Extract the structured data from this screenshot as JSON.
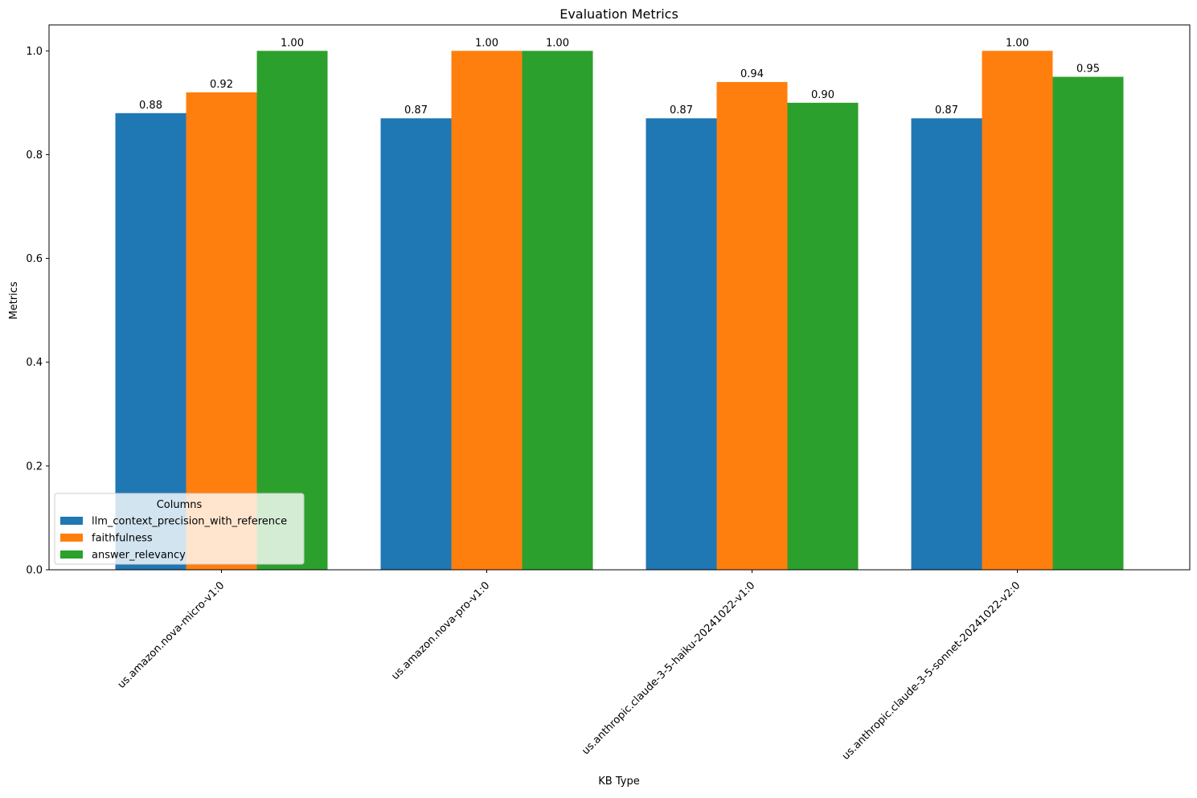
{
  "chart_data": {
    "type": "bar",
    "title": "Evaluation Metrics",
    "xlabel": "KB Type",
    "ylabel": "Metrics",
    "ylim": [
      0,
      1.05
    ],
    "yticks": [
      0.0,
      0.2,
      0.4,
      0.6,
      0.8,
      1.0
    ],
    "ytick_labels": [
      "0.0",
      "0.2",
      "0.4",
      "0.6",
      "0.8",
      "1.0"
    ],
    "grid": false,
    "categories": [
      "us.amazon.nova-micro-v1:0",
      "us.amazon.nova-pro-v1:0",
      "us.anthropic.claude-3-5-haiku-20241022-v1:0",
      "us.anthropic.claude-3-5-sonnet-20241022-v2:0"
    ],
    "series": [
      {
        "name": "llm_context_precision_with_reference",
        "color": "#1f77b4",
        "values": [
          0.88,
          0.87,
          0.87,
          0.87
        ],
        "labels": [
          "0.88",
          "0.87",
          "0.87",
          "0.87"
        ]
      },
      {
        "name": "faithfulness",
        "color": "#ff7f0e",
        "values": [
          0.92,
          1.0,
          0.94,
          1.0
        ],
        "labels": [
          "0.92",
          "1.00",
          "0.94",
          "1.00"
        ]
      },
      {
        "name": "answer_relevancy",
        "color": "#2ca02c",
        "values": [
          1.0,
          1.0,
          0.9,
          0.95
        ],
        "labels": [
          "1.00",
          "1.00",
          "0.90",
          "0.95"
        ]
      }
    ],
    "legend": {
      "title": "Columns",
      "placement": "lower-left"
    }
  }
}
